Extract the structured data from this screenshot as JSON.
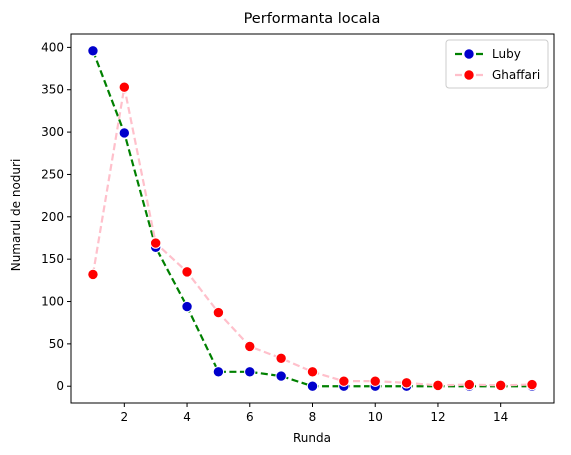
{
  "chart_data": {
    "type": "line",
    "title": "Performanta locala",
    "xlabel": "Runda",
    "ylabel": "Numarul de noduri",
    "xlim": [
      0.3,
      15.7
    ],
    "ylim": [
      -19.8,
      415.8
    ],
    "xticks": [
      2,
      4,
      6,
      8,
      10,
      12,
      14
    ],
    "yticks": [
      0,
      50,
      100,
      150,
      200,
      250,
      300,
      350,
      400
    ],
    "grid": false,
    "legend_position": "top-right",
    "x": [
      1,
      2,
      3,
      4,
      5,
      6,
      7,
      8,
      9,
      10,
      11,
      12,
      13,
      14,
      15
    ],
    "series": [
      {
        "name": "Luby",
        "values": [
          396,
          299,
          164,
          94,
          17,
          17,
          12,
          0,
          0,
          0,
          0,
          0,
          0,
          0,
          0
        ],
        "line_color": "#008000",
        "line_style": "dashed",
        "marker_face": "#0000cc",
        "marker_edge": "#ffffff"
      },
      {
        "name": "Ghaffari",
        "values": [
          132,
          353,
          169,
          135,
          87,
          47,
          33,
          17,
          6,
          6,
          4,
          1,
          2,
          1,
          2
        ],
        "line_color": "#ffc0cb",
        "line_style": "dashed",
        "marker_face": "#ff0000",
        "marker_edge": "#ffffff"
      }
    ]
  }
}
